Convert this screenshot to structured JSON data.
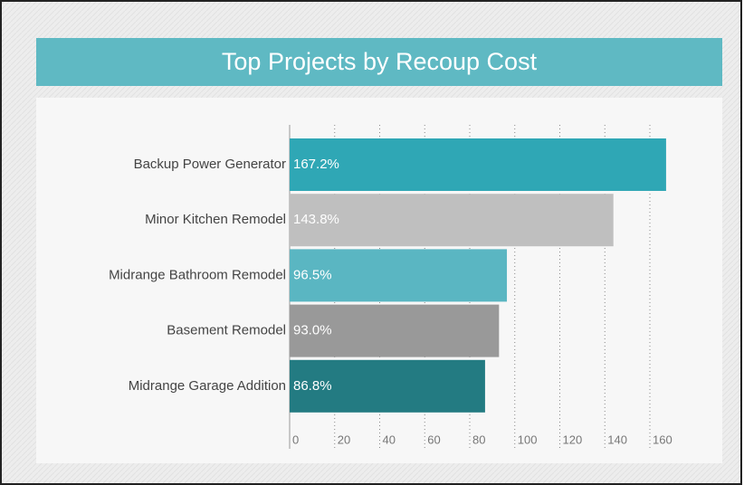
{
  "chart_data": {
    "type": "hbar",
    "title": "Top Projects by Recoup Cost",
    "categories": [
      "Backup Power Generator",
      "Minor Kitchen Remodel",
      "Midrange Bathroom Remodel",
      "Basement Remodel",
      "Midrange Garage Addition"
    ],
    "values": [
      167.2,
      143.8,
      96.5,
      93.0,
      86.8
    ],
    "value_labels": [
      "167.2%",
      "143.8%",
      "96.5%",
      "93.0%",
      "86.8%"
    ],
    "colors": [
      "#2fa7b5",
      "#bfbfbf",
      "#5ab6c2",
      "#999999",
      "#237b82"
    ],
    "xlim": [
      0,
      170
    ],
    "xticks": [
      0,
      20,
      40,
      60,
      80,
      100,
      120,
      140,
      160
    ],
    "grid": true
  }
}
